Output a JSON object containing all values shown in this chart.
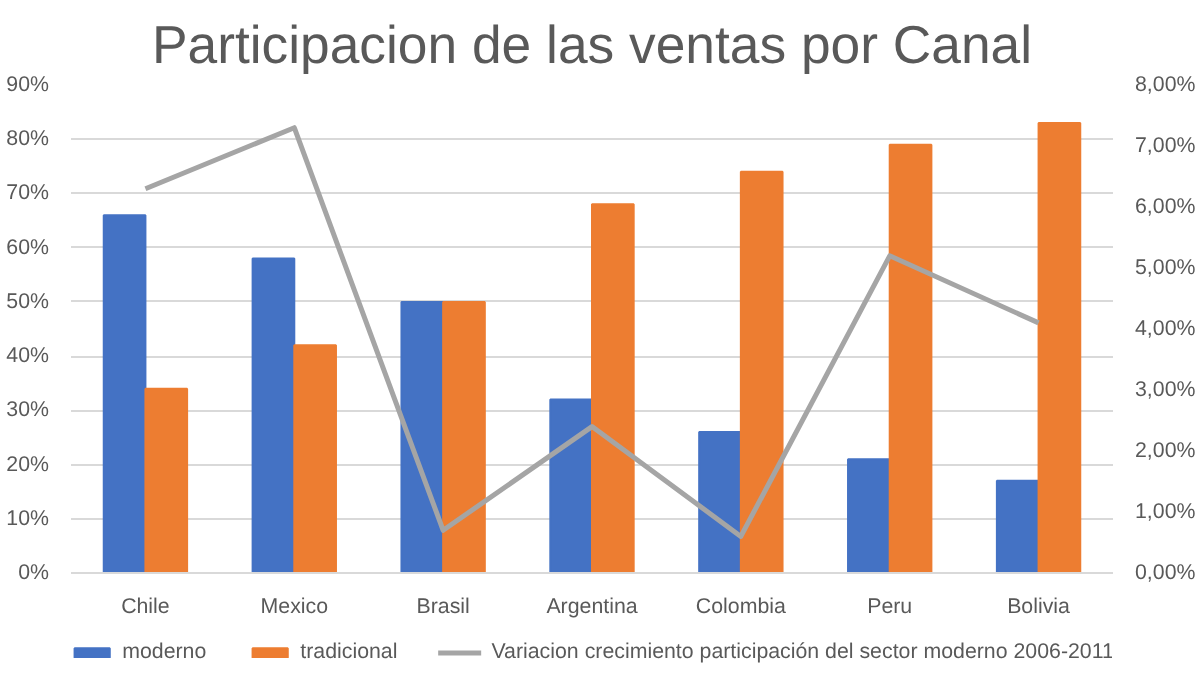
{
  "chart_data": {
    "type": "bar",
    "title": "Participacion de las ventas por Canal",
    "categories": [
      "Chile",
      "Mexico",
      "Brasil",
      "Argentina",
      "Colombia",
      "Peru",
      "Bolivia"
    ],
    "series": [
      {
        "name": "moderno",
        "color": "#4472c4",
        "values": [
          66,
          58,
          50,
          32,
          26,
          21,
          17
        ]
      },
      {
        "name": "tradicional",
        "color": "#ed7d31",
        "values": [
          34,
          42,
          50,
          68,
          74,
          79,
          83
        ]
      },
      {
        "name": "Variacion crecimiento participación del sector moderno 2006-2011",
        "type": "line",
        "axis": "y2",
        "color": "#a5a5a5",
        "values": [
          6.3,
          7.3,
          0.7,
          2.4,
          0.6,
          5.2,
          4.1
        ]
      }
    ],
    "ylim": [
      0,
      90
    ],
    "yticks": [
      {
        "value": 0,
        "label": "0%"
      },
      {
        "value": 10,
        "label": "10%"
      },
      {
        "value": 20,
        "label": "20%"
      },
      {
        "value": 30,
        "label": "30%"
      },
      {
        "value": 40,
        "label": "40%"
      },
      {
        "value": 50,
        "label": "50%"
      },
      {
        "value": 60,
        "label": "60%"
      },
      {
        "value": 70,
        "label": "70%"
      },
      {
        "value": 80,
        "label": "80%"
      },
      {
        "value": 90,
        "label": "90%"
      }
    ],
    "y2lim": [
      0,
      8
    ],
    "y2ticks": [
      {
        "value": 0,
        "label": "0,00%"
      },
      {
        "value": 1,
        "label": "1,00%"
      },
      {
        "value": 2,
        "label": "2,00%"
      },
      {
        "value": 3,
        "label": "3,00%"
      },
      {
        "value": 4,
        "label": "4,00%"
      },
      {
        "value": 5,
        "label": "5,00%"
      },
      {
        "value": 6,
        "label": "6,00%"
      },
      {
        "value": 7,
        "label": "7,00%"
      },
      {
        "value": 8,
        "label": "8,00%"
      }
    ],
    "grid": "y",
    "legend": "bottom",
    "marker": "none",
    "line_style": "solid"
  }
}
